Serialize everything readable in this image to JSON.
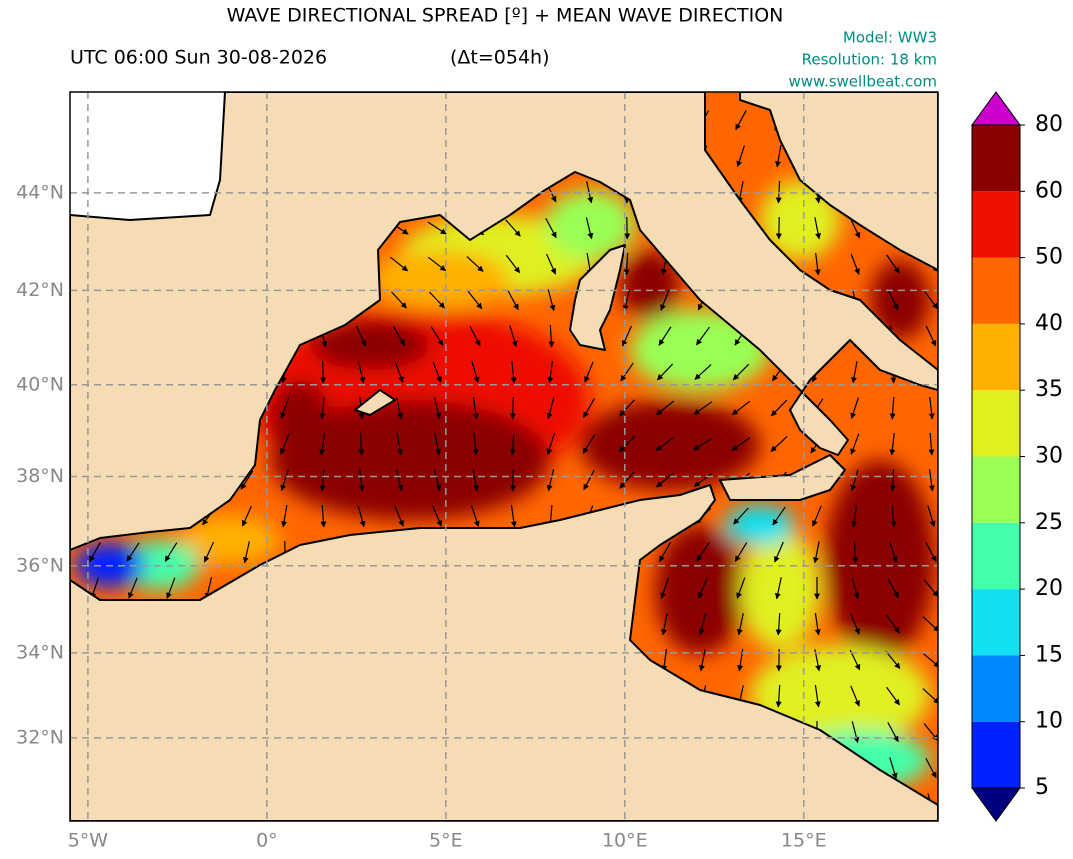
{
  "map": {
    "title": "WAVE DIRECTIONAL SPREAD [º] + MEAN WAVE DIRECTION",
    "time": "UTC 06:00 Sun 30-08-2026",
    "lead": "(Δt=054h)",
    "model": "Model: WW3",
    "resolution": "Resolution: 18 km",
    "website": "www.swellbeat.com",
    "xlim": [
      -5.5,
      18.75
    ],
    "ylim": [
      30,
      46
    ],
    "xticks": [
      {
        "value": -5,
        "label": "5°W"
      },
      {
        "value": 0,
        "label": "0°"
      },
      {
        "value": 5,
        "label": "5°E"
      },
      {
        "value": 10,
        "label": "10°E"
      },
      {
        "value": 15,
        "label": "15°E"
      }
    ],
    "yticks": [
      {
        "value": 32,
        "label": "32°N"
      },
      {
        "value": 34,
        "label": "34°N"
      },
      {
        "value": 36,
        "label": "36°N"
      },
      {
        "value": 38,
        "label": "38°N"
      },
      {
        "value": 40,
        "label": "40°N"
      },
      {
        "value": 42,
        "label": "42°N"
      },
      {
        "value": 44,
        "label": "44°N"
      }
    ],
    "grid": true,
    "colorbar": {
      "levels": [
        5,
        10,
        15,
        20,
        25,
        30,
        35,
        40,
        50,
        60,
        80
      ],
      "colors": [
        "#0022ff",
        "#0088ff",
        "#11e0f0",
        "#44ffaa",
        "#99ff55",
        "#e0f020",
        "#ffb000",
        "#ff6600",
        "#ee1100",
        "#8b0000"
      ],
      "under_color": "#00007f",
      "over_color": "#cc00cc"
    }
  }
}
